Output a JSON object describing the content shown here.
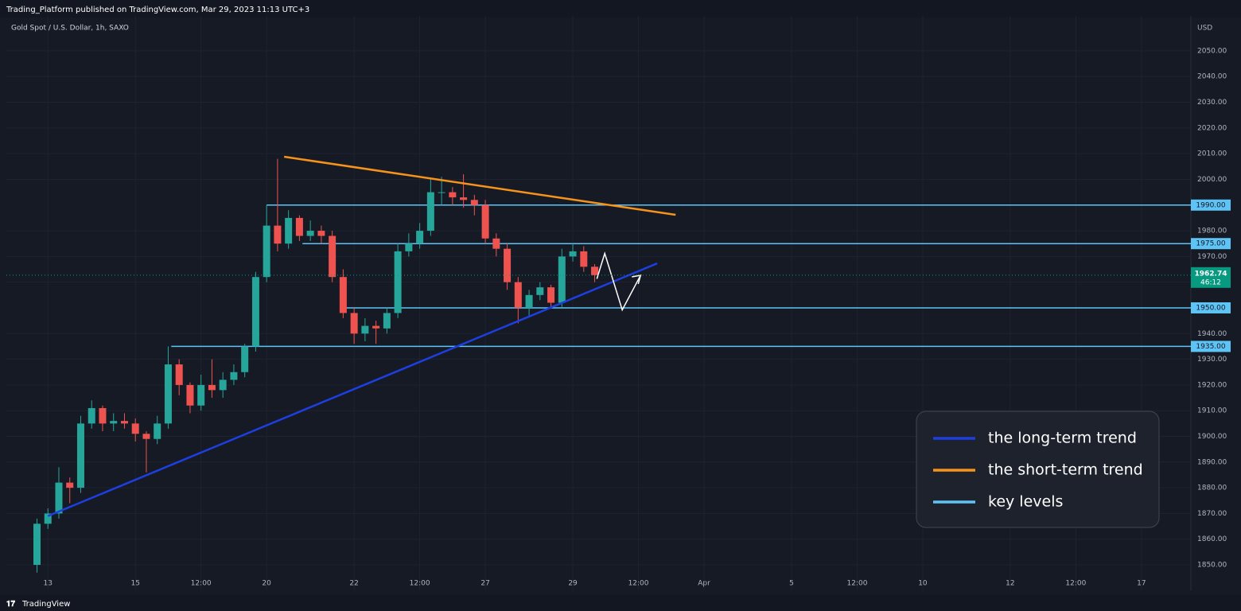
{
  "header": {
    "publisher": "Trading_Platform published on TradingView.com, Mar 29, 2023 11:13 UTC+3",
    "footer": "TradingView"
  },
  "chart_data": {
    "type": "candlestick",
    "title": "Gold Spot / U.S. Dollar, 1h, SAXO",
    "y_unit": "USD",
    "up_color": "#26a69a",
    "down_color": "#ef5350",
    "grid": true,
    "xlim": [
      -0.95,
      26.13
    ],
    "ylim": [
      1840.1,
      2063.6
    ],
    "xticks": [
      {
        "value": 0,
        "label": "13"
      },
      {
        "value": 2,
        "label": "15"
      },
      {
        "value": 3.5,
        "label": "12:00"
      },
      {
        "value": 5,
        "label": "20"
      },
      {
        "value": 7,
        "label": "22"
      },
      {
        "value": 8.5,
        "label": "12:00"
      },
      {
        "value": 10,
        "label": "27"
      },
      {
        "value": 12,
        "label": "29"
      },
      {
        "value": 13.5,
        "label": "12:00"
      },
      {
        "value": 15,
        "label": "Apr"
      },
      {
        "value": 17,
        "label": "5"
      },
      {
        "value": 18.5,
        "label": "12:00"
      },
      {
        "value": 20,
        "label": "10"
      },
      {
        "value": 22,
        "label": "12"
      },
      {
        "value": 23.5,
        "label": "12:00"
      },
      {
        "value": 25,
        "label": "17"
      }
    ],
    "yticks": [
      {
        "value": 1850,
        "label": "1850.00"
      },
      {
        "value": 1860,
        "label": "1860.00"
      },
      {
        "value": 1870,
        "label": "1870.00"
      },
      {
        "value": 1880,
        "label": "1880.00"
      },
      {
        "value": 1890,
        "label": "1890.00"
      },
      {
        "value": 1900,
        "label": "1900.00"
      },
      {
        "value": 1910,
        "label": "1910.00"
      },
      {
        "value": 1920,
        "label": "1920.00"
      },
      {
        "value": 1930,
        "label": "1930.00"
      },
      {
        "value": 1940,
        "label": "1940.00"
      },
      {
        "value": 1960,
        "label": "1960.00"
      },
      {
        "value": 1970,
        "label": "1970.00"
      },
      {
        "value": 1980,
        "label": "1980.00"
      },
      {
        "value": 2000,
        "label": "2000.00"
      },
      {
        "value": 2010,
        "label": "2010.00"
      },
      {
        "value": 2020,
        "label": "2020.00"
      },
      {
        "value": 2030,
        "label": "2030.00"
      },
      {
        "value": 2040,
        "label": "2040.00"
      },
      {
        "value": 2050,
        "label": "2050.00"
      }
    ],
    "x": [
      -0.25,
      0,
      0.25,
      0.5,
      0.75,
      1,
      1.25,
      1.5,
      1.75,
      2,
      2.25,
      2.5,
      2.75,
      3,
      3.25,
      3.5,
      3.75,
      4,
      4.25,
      4.5,
      4.75,
      5,
      5.25,
      5.5,
      5.75,
      6,
      6.25,
      6.5,
      6.75,
      7,
      7.25,
      7.5,
      7.75,
      8,
      8.25,
      8.5,
      8.75,
      9,
      9.25,
      9.5,
      9.75,
      10,
      10.25,
      10.5,
      10.75,
      11,
      11.25,
      11.5,
      11.75,
      12,
      12.25,
      12.5
    ],
    "open": [
      1850,
      1866,
      1870,
      1882,
      1880,
      1905,
      1911,
      1905,
      1906,
      1905,
      1901,
      1899,
      1905,
      1928,
      1920,
      1912,
      1920,
      1918,
      1922,
      1925,
      1935,
      1962,
      1982,
      1975,
      1985,
      1978,
      1980,
      1978,
      1962,
      1948,
      1940,
      1943,
      1942,
      1948,
      1972,
      1975,
      1980,
      1995,
      1995,
      1993,
      1992,
      1990,
      1977,
      1973,
      1960,
      1950,
      1955,
      1958,
      1952,
      1970,
      1972,
      1966
    ],
    "high": [
      1868,
      1872,
      1888,
      1884,
      1908,
      1914,
      1912,
      1909,
      1909,
      1907,
      1902,
      1908,
      1935,
      1930,
      1921,
      1924,
      1930,
      1925,
      1928,
      1936,
      1964,
      1990,
      2008,
      1988,
      1986,
      1984,
      1982,
      1980,
      1965,
      1950,
      1946,
      1945,
      1950,
      1975,
      1979,
      1983,
      2000,
      2001,
      1997,
      2002,
      1994,
      1992,
      1979,
      1975,
      1962,
      1957,
      1960,
      1959,
      1973,
      1975,
      1974,
      1967
    ],
    "low": [
      1847,
      1864,
      1868,
      1874,
      1878,
      1903,
      1902,
      1902,
      1903,
      1898,
      1886,
      1897,
      1903,
      1916,
      1909,
      1910,
      1915,
      1915,
      1920,
      1923,
      1933,
      1960,
      1972,
      1973,
      1976,
      1976,
      1975,
      1960,
      1946,
      1936,
      1937,
      1936,
      1940,
      1946,
      1970,
      1973,
      1978,
      1990,
      1990,
      1989,
      1986,
      1975,
      1970,
      1957,
      1944,
      1947,
      1953,
      1950,
      1950,
      1968,
      1964,
      1960
    ],
    "close": [
      1866,
      1870,
      1882,
      1880,
      1905,
      1911,
      1905,
      1906,
      1905,
      1901,
      1899,
      1905,
      1928,
      1920,
      1912,
      1920,
      1918,
      1922,
      1925,
      1935,
      1962,
      1982,
      1975,
      1985,
      1978,
      1980,
      1978,
      1962,
      1948,
      1940,
      1943,
      1942,
      1948,
      1972,
      1975,
      1980,
      1995,
      1995,
      1993,
      1992,
      1990,
      1977,
      1973,
      1960,
      1950,
      1955,
      1958,
      1952,
      1970,
      1972,
      1966,
      1962.74
    ],
    "last_price": {
      "value": 1962.74,
      "label": "1962.74",
      "countdown": "46:12",
      "color": "#089981"
    },
    "key_levels": [
      {
        "value": 1990,
        "label": "1990.00",
        "start": 5
      },
      {
        "value": 1975,
        "label": "1975.00",
        "start": 5.82
      },
      {
        "value": 1950,
        "label": "1950.00",
        "start": 6.73
      },
      {
        "value": 1935,
        "label": "1935.00",
        "start": 2.82
      }
    ],
    "trend_lines": [
      {
        "name": "the long-term trend",
        "color": "#1e3fe0",
        "x": [
          0,
          13.93
        ],
        "y": [
          1869,
          1967.3
        ]
      },
      {
        "name": "the short-term trend",
        "color": "#f7931a",
        "x": [
          5.4,
          14.35
        ],
        "y": [
          2008.8,
          1986.2
        ]
      }
    ],
    "key_level_legend": {
      "name": "key levels",
      "color": "#5ec3f5"
    },
    "projection": {
      "color": "#ffffff",
      "x": [
        12.55,
        12.73,
        13.13,
        13.55
      ],
      "y": [
        1961.3,
        1971.2,
        1949.2,
        1962.7
      ]
    }
  }
}
